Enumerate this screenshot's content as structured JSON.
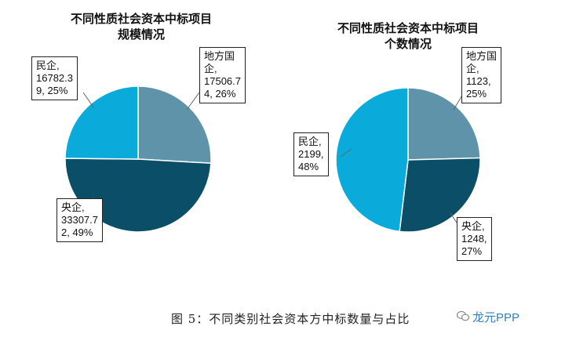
{
  "chart_data": [
    {
      "type": "pie",
      "title": "不同性质社会资本中标项目\n规模情况",
      "slices": [
        {
          "name": "地方国企",
          "value": 17506.74,
          "percent": 26,
          "label": "地方国\n企,\n17506.7\n4, 26%",
          "color": "#5f93aa"
        },
        {
          "name": "央企",
          "value": 33307.72,
          "percent": 49,
          "label": "央企,\n33307.7\n2, 49%",
          "color": "#0a4f67"
        },
        {
          "name": "民企",
          "value": 16782.39,
          "percent": 25,
          "label": "民企,\n16782.3\n9, 25%",
          "color": "#0aaadb"
        }
      ]
    },
    {
      "type": "pie",
      "title": "不同性质社会资本中标项目\n个数情况",
      "slices": [
        {
          "name": "地方国企",
          "value": 1123,
          "percent": 25,
          "label": "地方国\n企,\n1123,\n25%",
          "color": "#5f93aa"
        },
        {
          "name": "央企",
          "value": 1248,
          "percent": 27,
          "label": "央企,\n1248,\n27%",
          "color": "#0a4f67"
        },
        {
          "name": "民企",
          "value": 2199,
          "percent": 48,
          "label": "民企,\n2199,\n48%",
          "color": "#0aaadb"
        }
      ]
    }
  ],
  "caption": "图 5：不同类别社会资本方中标数量与占比",
  "watermark": "龙元PPP"
}
